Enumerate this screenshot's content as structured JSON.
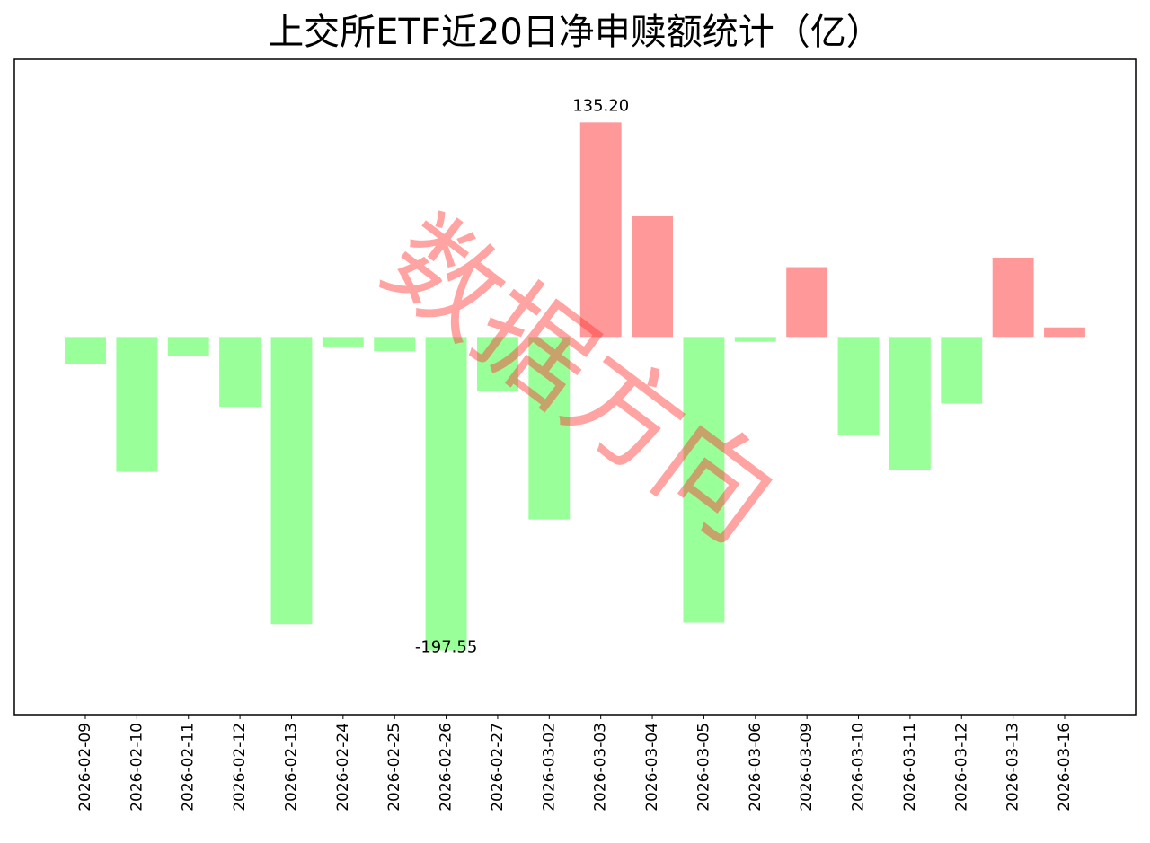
{
  "chart_data": {
    "type": "bar",
    "title": "上交所ETF近20日净申赎额统计（亿）",
    "watermark": "数据方向",
    "categories": [
      "2026-02-09",
      "2026-02-10",
      "2026-02-11",
      "2026-02-12",
      "2026-02-13",
      "2026-02-24",
      "2026-02-25",
      "2026-02-26",
      "2026-02-27",
      "2026-03-02",
      "2026-03-03",
      "2026-03-04",
      "2026-03-05",
      "2026-03-06",
      "2026-03-09",
      "2026-03-10",
      "2026-03-11",
      "2026-03-12",
      "2026-03-13",
      "2026-03-16"
    ],
    "values": [
      -17,
      -85,
      -12,
      -44,
      -181,
      -6,
      -9,
      -197.55,
      -34,
      -115,
      135.2,
      76,
      -180,
      -3,
      44,
      -62,
      -84,
      -42,
      50,
      6
    ],
    "value_labels": [
      null,
      null,
      null,
      null,
      null,
      null,
      null,
      "-197.55",
      null,
      null,
      "135.20",
      null,
      null,
      null,
      null,
      null,
      null,
      null,
      null,
      null
    ],
    "positive_color": "#ff9999",
    "negative_color": "#99ff99",
    "ylim": [
      -238,
      175
    ]
  }
}
